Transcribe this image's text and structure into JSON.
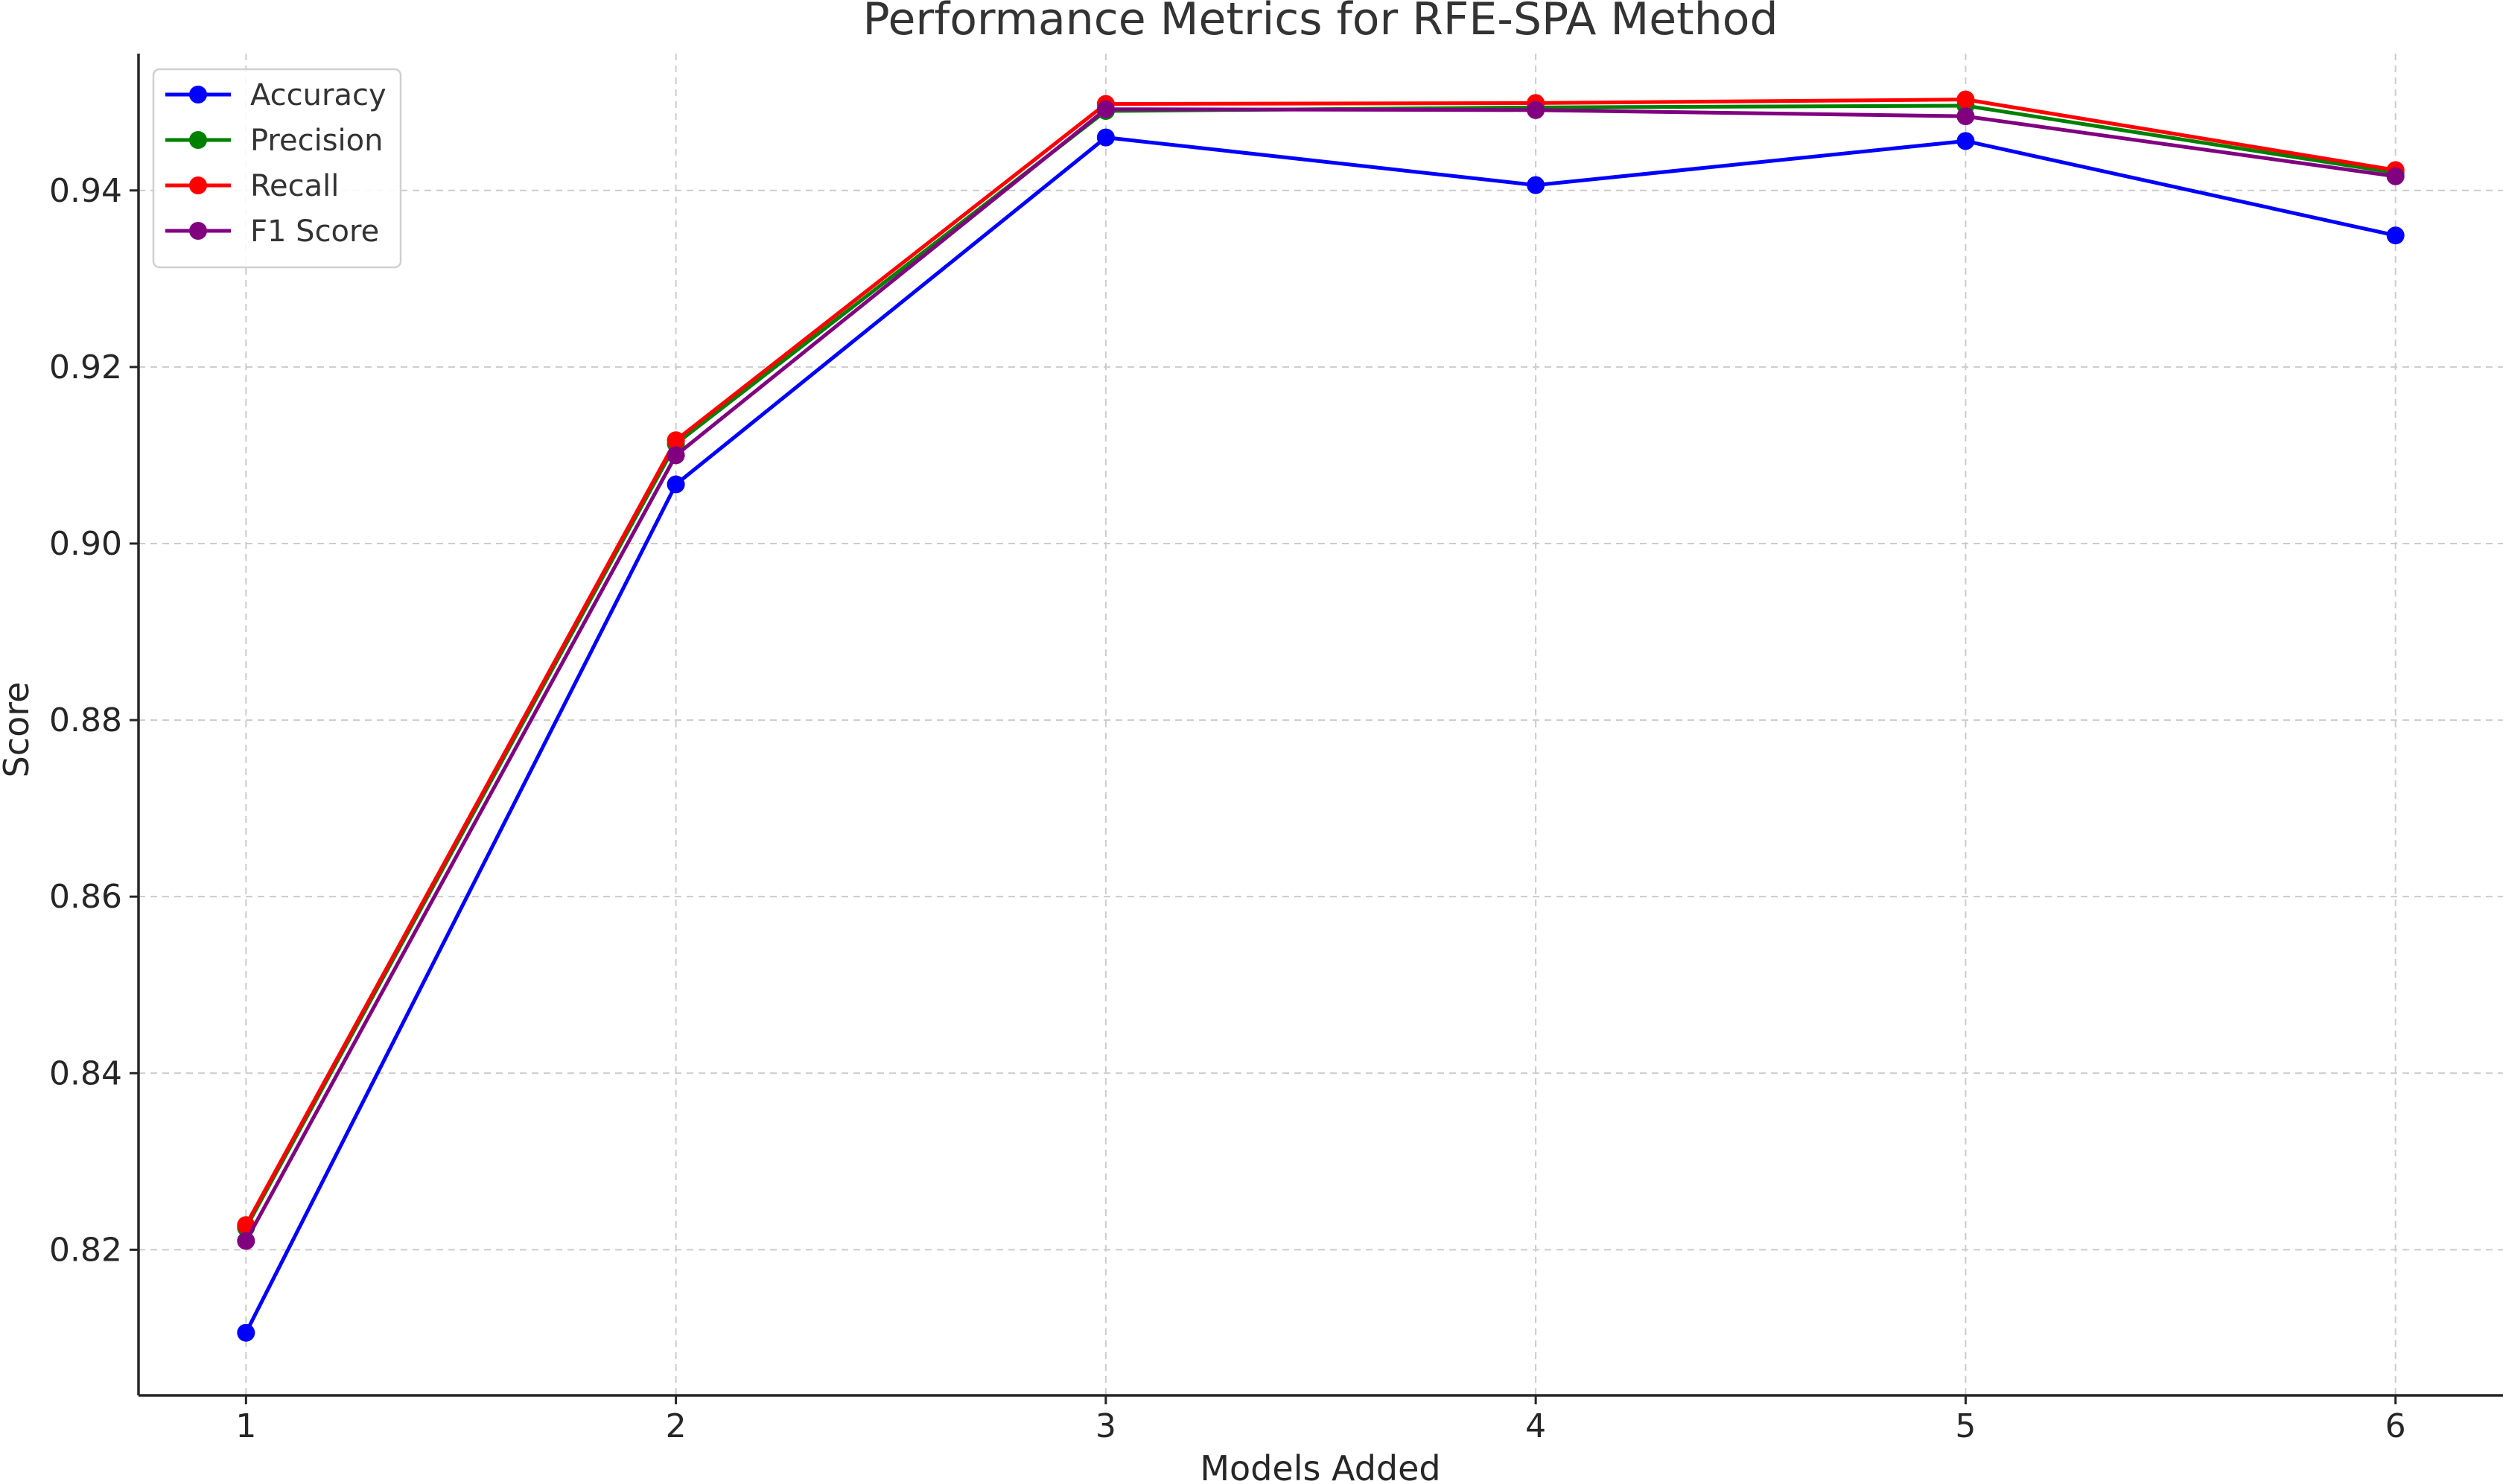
{
  "chart_data": {
    "type": "line",
    "title": "Performance Metrics for RFE-SPA Method",
    "xlabel": "Models Added",
    "ylabel": "Score",
    "x": [
      1,
      2,
      3,
      4,
      5,
      6
    ],
    "x_ticks": [
      "1",
      "2",
      "3",
      "4",
      "5",
      "6"
    ],
    "xlim": [
      0.75,
      6.25
    ],
    "y_ticks": [
      "0.82",
      "0.84",
      "0.86",
      "0.88",
      "0.90",
      "0.92",
      "0.94"
    ],
    "ylim": [
      0.8035,
      0.9555
    ],
    "grid": true,
    "legend_position": "top-left",
    "series": [
      {
        "name": "Accuracy",
        "color": "#0000ff",
        "values": [
          0.8106,
          0.9067,
          0.946,
          0.9406,
          0.9456,
          0.9349
        ]
      },
      {
        "name": "Precision",
        "color": "#008000",
        "values": [
          0.8225,
          0.9113,
          0.949,
          0.9494,
          0.9496,
          0.942
        ]
      },
      {
        "name": "Recall",
        "color": "#ff0000",
        "values": [
          0.8228,
          0.9117,
          0.9498,
          0.9499,
          0.9503,
          0.9423
        ]
      },
      {
        "name": "F1 Score",
        "color": "#800080",
        "values": [
          0.821,
          0.91,
          0.9492,
          0.9491,
          0.9484,
          0.9416
        ]
      }
    ]
  }
}
